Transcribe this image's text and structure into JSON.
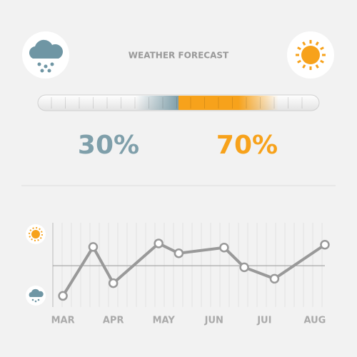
{
  "title": "WEATHER FORECAST",
  "gauge": {
    "names": [
      "rain",
      "sun"
    ],
    "values": [
      30,
      70
    ],
    "value_labels": [
      "30%",
      "70%"
    ],
    "colors": [
      "#7f9faa",
      "#f7a21b"
    ]
  },
  "chart_data": {
    "type": "line",
    "x": [
      3.0,
      3.6,
      4.0,
      4.9,
      5.3,
      6.2,
      6.6,
      7.2,
      8.2
    ],
    "values": [
      -0.95,
      0.59,
      -0.55,
      0.7,
      0.39,
      0.57,
      -0.05,
      -0.41,
      0.66
    ],
    "color": "#999999",
    "xlim": [
      2.8,
      8.2
    ],
    "ylim": [
      -1.3,
      1.35
    ],
    "xticks": [
      {
        "value": 3,
        "label": "MAR"
      },
      {
        "value": 4,
        "label": "APR"
      },
      {
        "value": 5,
        "label": "MAY"
      },
      {
        "value": 6,
        "label": "JUN"
      },
      {
        "value": 7,
        "label": "JUI"
      },
      {
        "value": 8,
        "label": "AUG"
      }
    ],
    "grid": true
  }
}
